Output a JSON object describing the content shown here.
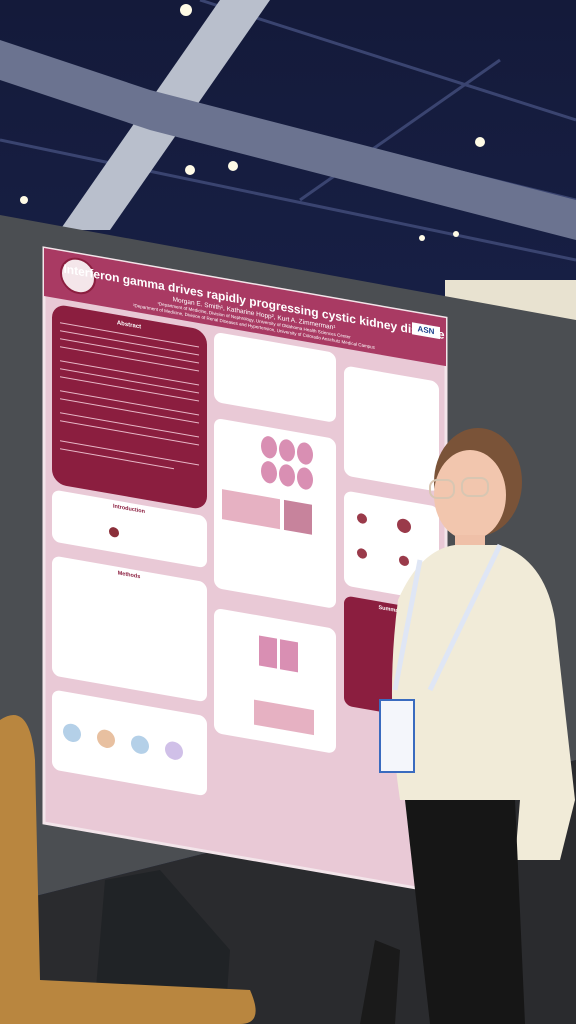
{
  "poster": {
    "title": "Interferon gamma drives rapidly progressing cystic kidney disease",
    "authors": "Morgan E. Smith¹, Katharine Hopp², Kurt A. Zimmerman¹",
    "affiliations": [
      "¹Department of Medicine, Division of Nephrology, University of Oklahoma Health Sciences Center",
      "²Department of Medicine, Division of Renal Diseases and Hypertension, University of Colorado Anschutz Medical Campus"
    ],
    "badge": "ASN",
    "sections": [
      "Abstract",
      "Introduction",
      "Methods",
      "Summary"
    ]
  }
}
